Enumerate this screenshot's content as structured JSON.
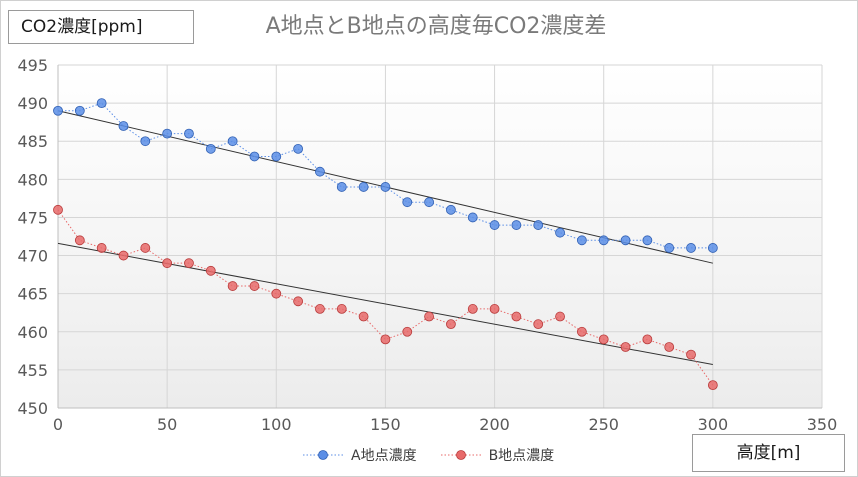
{
  "chart_data": {
    "type": "scatter",
    "title": "A地点とB地点の高度毎CO2濃度差",
    "xlabel": "高度[m]",
    "ylabel": "CO2濃度[ppm]",
    "xlim": [
      0,
      350
    ],
    "ylim": [
      450,
      495
    ],
    "xticks": [
      0,
      50,
      100,
      150,
      200,
      250,
      300,
      350
    ],
    "yticks": [
      450,
      455,
      460,
      465,
      470,
      475,
      480,
      485,
      490,
      495
    ],
    "grid": true,
    "legend_position": "bottom",
    "series": [
      {
        "name": "A地点濃度",
        "color": "#5b8ee6",
        "x": [
          0,
          10,
          20,
          30,
          40,
          50,
          60,
          70,
          80,
          90,
          100,
          110,
          120,
          130,
          140,
          150,
          160,
          170,
          180,
          190,
          200,
          210,
          220,
          230,
          240,
          250,
          260,
          270,
          280,
          290,
          300
        ],
        "y": [
          489,
          489,
          490,
          487,
          485,
          486,
          486,
          484,
          485,
          483,
          483,
          484,
          481,
          479,
          479,
          479,
          477,
          477,
          476,
          475,
          474,
          474,
          474,
          473,
          472,
          472,
          472,
          472,
          471,
          471,
          471
        ],
        "trendline": {
          "x": [
            0,
            300
          ],
          "y": [
            489,
            469
          ]
        }
      },
      {
        "name": "B地点濃度",
        "color": "#e86a6a",
        "x": [
          0,
          10,
          20,
          30,
          40,
          50,
          60,
          70,
          80,
          90,
          100,
          110,
          120,
          130,
          140,
          150,
          160,
          170,
          180,
          190,
          200,
          210,
          220,
          230,
          240,
          250,
          260,
          270,
          280,
          290,
          300
        ],
        "y": [
          476,
          472,
          471,
          470,
          471,
          469,
          469,
          468,
          466,
          466,
          465,
          464,
          463,
          463,
          462,
          459,
          460,
          462,
          461,
          463,
          463,
          462,
          461,
          462,
          460,
          459,
          458,
          459,
          458,
          457,
          453
        ],
        "trendline": {
          "x": [
            0,
            300
          ],
          "y": [
            471.6,
            455.7
          ]
        }
      }
    ]
  }
}
